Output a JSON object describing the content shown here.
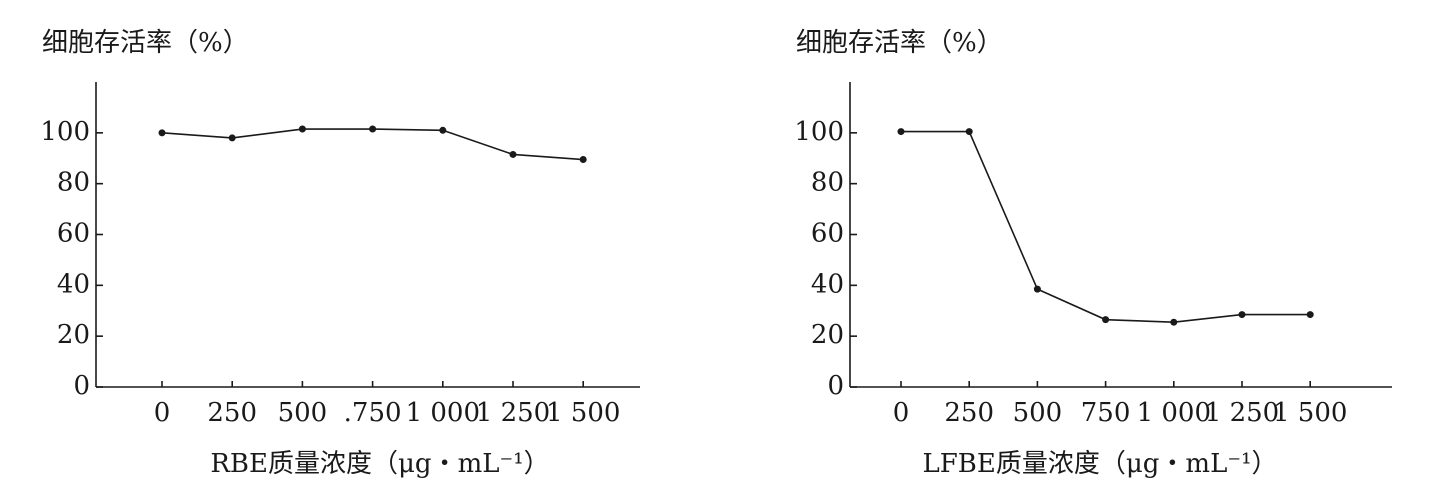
{
  "chart_data": [
    {
      "type": "line",
      "y_label": "细胞存活率（%）",
      "x_label": "RBE质量浓度（μg・mL⁻¹）",
      "categories": [
        "0",
        "250",
        "500",
        ".750",
        "1 000",
        "1 250",
        "1 500"
      ],
      "values": [
        100,
        98,
        101.5,
        101.5,
        101,
        91.5,
        89.5
      ],
      "color": "#1a1a1a",
      "ylim": [
        0,
        120
      ],
      "yticks": [
        0,
        20,
        40,
        60,
        80,
        100
      ]
    },
    {
      "type": "line",
      "y_label": "细胞存活率（%）",
      "x_label": "LFBE质量浓度（μg・mL⁻¹）",
      "categories": [
        "0",
        "250",
        "500",
        "750",
        "1 000",
        "1 250",
        "1 500"
      ],
      "values": [
        100.5,
        100.5,
        38.5,
        26.5,
        25.5,
        28.5,
        28.5
      ],
      "color": "#1a1a1a",
      "ylim": [
        0,
        120
      ],
      "yticks": [
        0,
        20,
        40,
        60,
        80,
        100
      ]
    }
  ]
}
